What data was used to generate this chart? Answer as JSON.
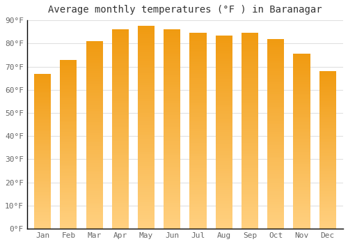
{
  "title": "Average monthly temperatures (°F ) in Baranagar",
  "months": [
    "Jan",
    "Feb",
    "Mar",
    "Apr",
    "May",
    "Jun",
    "Jul",
    "Aug",
    "Sep",
    "Oct",
    "Nov",
    "Dec"
  ],
  "values": [
    67,
    73,
    81,
    86,
    87.5,
    86,
    84.5,
    83.5,
    84.5,
    82,
    75.5,
    68
  ],
  "bar_color": "#F5A623",
  "bar_color_light": "#FFD080",
  "background_color": "#ffffff",
  "plot_bg_color": "#ffffff",
  "grid_color": "#e0e0e0",
  "axis_color": "#000000",
  "tick_color": "#666666",
  "ylim": [
    0,
    90
  ],
  "yticks": [
    0,
    10,
    20,
    30,
    40,
    50,
    60,
    70,
    80,
    90
  ],
  "ytick_labels": [
    "0°F",
    "10°F",
    "20°F",
    "30°F",
    "40°F",
    "50°F",
    "60°F",
    "70°F",
    "80°F",
    "90°F"
  ],
  "title_fontsize": 10,
  "tick_fontsize": 8,
  "bar_width": 0.65
}
